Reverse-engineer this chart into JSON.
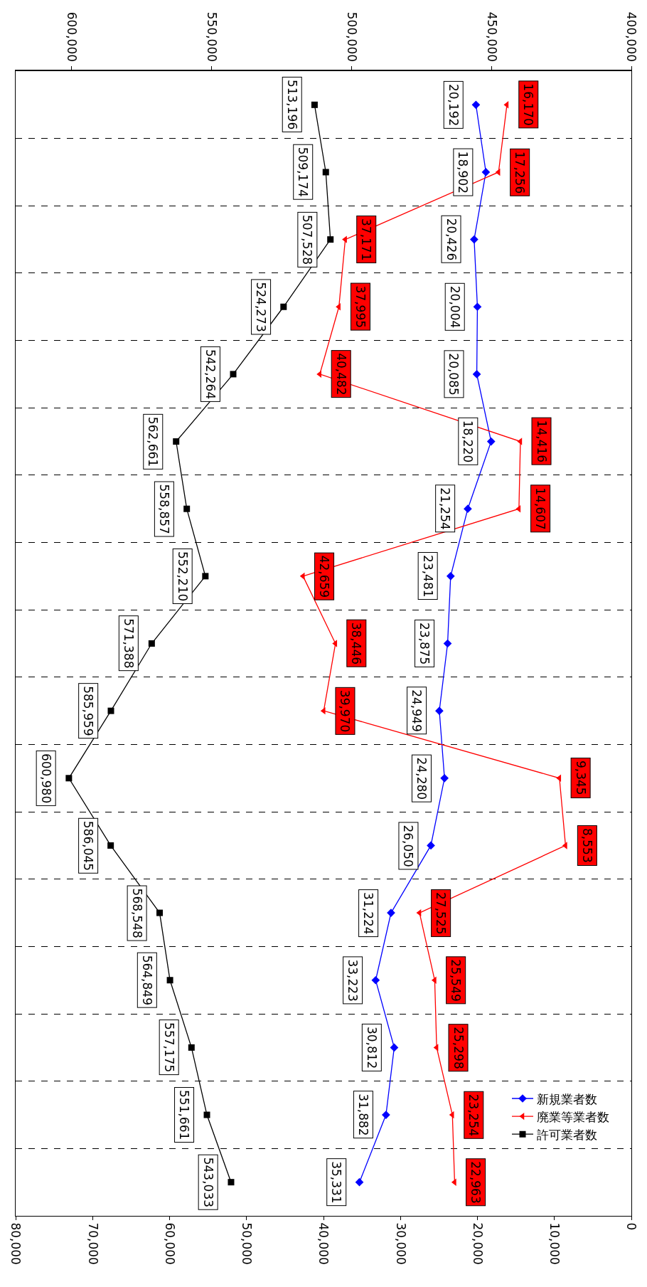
{
  "chart_data": {
    "type": "line",
    "orientation": "horizontal",
    "categories": [
      null,
      null,
      null,
      null,
      null,
      null,
      null,
      null,
      null,
      null,
      null,
      null,
      null,
      null,
      null,
      null,
      null
    ],
    "series": [
      {
        "name": "新規業者数",
        "color": "#0000ff",
        "marker": "diamond",
        "values": [
          20192,
          18902,
          20426,
          20004,
          20085,
          18220,
          21254,
          23481,
          23875,
          24949,
          24280,
          26050,
          31224,
          33223,
          30812,
          31882,
          35331
        ],
        "value_labels": [
          "20,192",
          "18,902",
          "20,426",
          "20,004",
          "20,085",
          "18,220",
          "21,254",
          "23,481",
          "23,875",
          "24,949",
          "24,280",
          "26,050",
          "31,224",
          "33,223",
          "30,812",
          "31,882",
          "35,331"
        ]
      },
      {
        "name": "廃業等業者数",
        "color": "#ff0000",
        "marker": "triangle",
        "values": [
          16170,
          17256,
          37171,
          37995,
          40482,
          14416,
          14607,
          42659,
          38446,
          39970,
          9345,
          8553,
          27525,
          25549,
          25298,
          23254,
          22963
        ],
        "value_labels": [
          "16,170",
          "17,256",
          "37,171",
          "37,995",
          "40,482",
          "14,416",
          "14,607",
          "42,659",
          "38,446",
          "39,970",
          "9,345",
          "8,553",
          "27,525",
          "25,549",
          "25,298",
          "23,254",
          "22,963"
        ]
      },
      {
        "name": "許可業者数",
        "color": "#000000",
        "marker": "square",
        "axis": "x2",
        "values": [
          513196,
          509174,
          507528,
          524273,
          542264,
          562661,
          558857,
          552210,
          571388,
          585959,
          600980,
          586045,
          568548,
          564849,
          557175,
          551661,
          543033
        ],
        "value_labels": [
          "513,196",
          "509,174",
          "507,528",
          "524,273",
          "542,264",
          "562,661",
          "558,857",
          "552,210",
          "571,388",
          "585,959",
          "600,980",
          "586,045",
          "568,548",
          "564,849",
          "557,175",
          "551,661",
          "543,033"
        ]
      }
    ],
    "xlim": [
      80000,
      0
    ],
    "xticks": [
      {
        "value": 0,
        "label": "0"
      },
      {
        "value": 10000,
        "label": "10,000"
      },
      {
        "value": 20000,
        "label": "20,000"
      },
      {
        "value": 30000,
        "label": "30,000"
      },
      {
        "value": 40000,
        "label": "40,000"
      },
      {
        "value": 50000,
        "label": "50,000"
      },
      {
        "value": 60000,
        "label": "60,000"
      },
      {
        "value": 70000,
        "label": "70,000"
      },
      {
        "value": 80000,
        "label": "80,000"
      }
    ],
    "x2lim": [
      620000,
      400000
    ],
    "x2ticks": [
      {
        "value": 400000,
        "label": "400,000"
      },
      {
        "value": 450000,
        "label": "450,000"
      },
      {
        "value": 500000,
        "label": "500,000"
      },
      {
        "value": 550000,
        "label": "550,000"
      },
      {
        "value": 600000,
        "label": "600,000"
      }
    ],
    "grid": "y",
    "legend": "bottom right",
    "line_style": "solid"
  }
}
